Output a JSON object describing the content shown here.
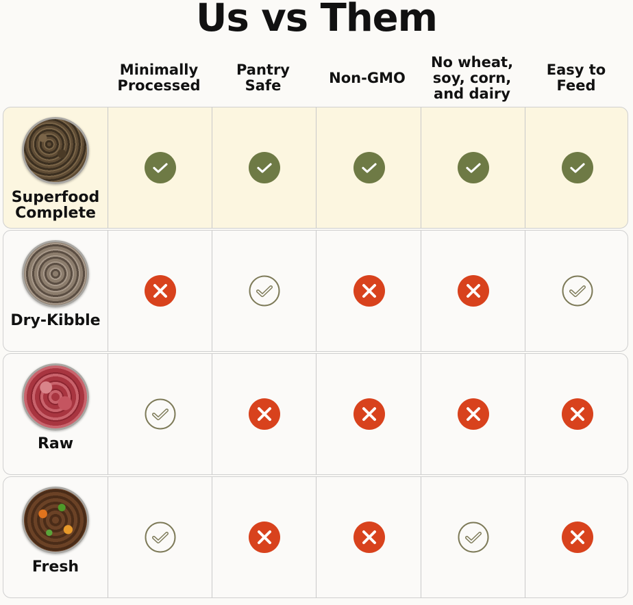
{
  "title": "Us vs Them",
  "columns": [
    "Minimally\nProcessed",
    "Pantry\nSafe",
    "Non-GMO",
    "No wheat,\nsoy, corn,\nand dairy",
    "Easy to\nFeed"
  ],
  "colors": {
    "check_filled": "#6e7a45",
    "check_outline": "#7d7a58",
    "cross": "#d8421d",
    "highlight_row": "#fcf6e0"
  },
  "rows": [
    {
      "name": "Superfood\nComplete",
      "image": "dark-brown-chunks-bowl",
      "values": [
        "check-filled",
        "check-filled",
        "check-filled",
        "check-filled",
        "check-filled"
      ]
    },
    {
      "name": "Dry-Kibble",
      "image": "kibble-bowl",
      "values": [
        "cross",
        "check-outline",
        "cross",
        "cross",
        "check-outline"
      ]
    },
    {
      "name": "Raw",
      "image": "raw-meat-bowl",
      "values": [
        "check-outline",
        "cross",
        "cross",
        "cross",
        "cross"
      ]
    },
    {
      "name": "Fresh",
      "image": "fresh-food-bowl",
      "values": [
        "check-outline",
        "cross",
        "cross",
        "check-outline",
        "cross"
      ]
    }
  ]
}
